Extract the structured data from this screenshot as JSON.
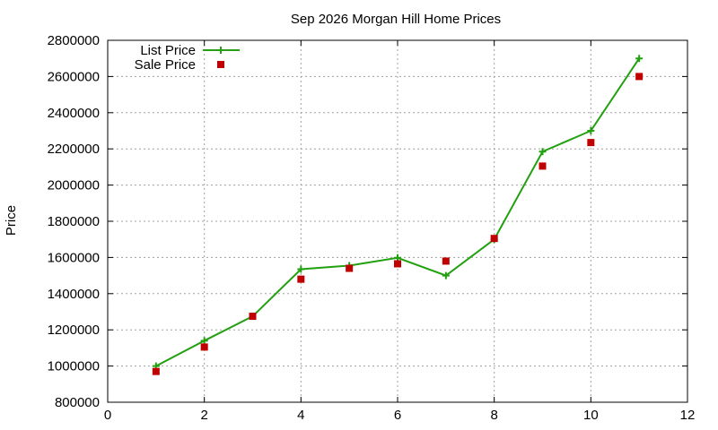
{
  "chart_data": {
    "type": "line",
    "title": "Sep 2026 Morgan Hill Home Prices",
    "xlabel": "",
    "ylabel": "Price",
    "xlim": [
      0,
      12
    ],
    "ylim": [
      800000,
      2800000
    ],
    "x_ticks": [
      "0",
      "2",
      "4",
      "6",
      "8",
      "10",
      "12"
    ],
    "y_ticks": [
      "800000",
      "1000000",
      "1200000",
      "1400000",
      "1600000",
      "1800000",
      "2000000",
      "2200000",
      "2400000",
      "2600000",
      "2800000"
    ],
    "grid": true,
    "legend_position": "top-left",
    "series": [
      {
        "name": "List Price",
        "style": "line+plus",
        "color": "#22a010",
        "x": [
          1,
          2,
          3,
          4,
          5,
          6,
          7,
          8,
          9,
          10,
          11
        ],
        "y": [
          1000000,
          1140000,
          1275000,
          1535000,
          1555000,
          1598000,
          1500000,
          1700000,
          2185000,
          2300000,
          2700000
        ]
      },
      {
        "name": "Sale Price",
        "style": "square",
        "color": "#c00000",
        "x": [
          1,
          2,
          3,
          4,
          5,
          6,
          7,
          8,
          9,
          10,
          11
        ],
        "y": [
          970000,
          1105000,
          1275000,
          1480000,
          1540000,
          1565000,
          1580000,
          1705000,
          2105000,
          2235000,
          2600000
        ]
      }
    ]
  }
}
